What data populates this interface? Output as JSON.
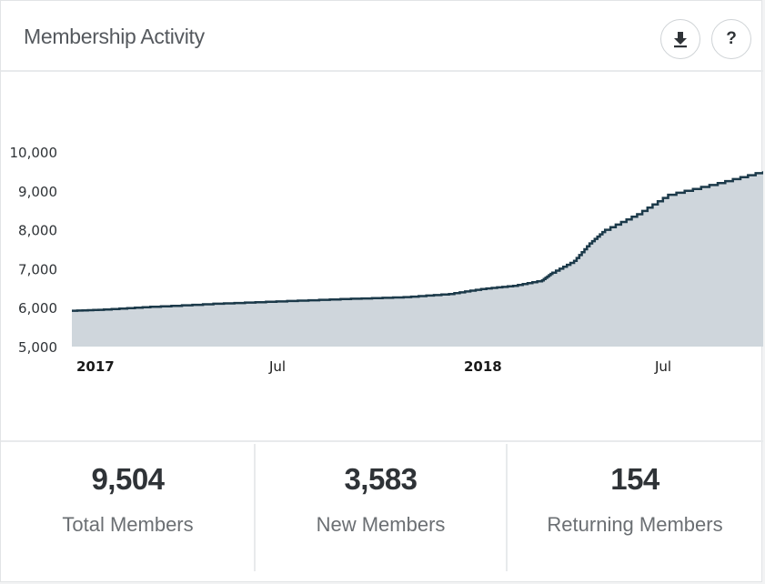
{
  "header": {
    "title": "Membership Activity",
    "download_icon": "download-icon",
    "help_icon": "help-icon",
    "help_label": "?"
  },
  "colors": {
    "line": "#1c3a4a",
    "area": "#cfd6dc",
    "text": "#2f3337"
  },
  "chart_data": {
    "type": "area",
    "title": "",
    "xlabel": "",
    "ylabel": "",
    "ylim": [
      5000,
      10000
    ],
    "xlim": [
      "2016-12-15",
      "2018-10-15"
    ],
    "yticks": [
      "5,000",
      "6,000",
      "7,000",
      "8,000",
      "9,000",
      "10,000"
    ],
    "yticks_values": [
      5000,
      6000,
      7000,
      8000,
      9000,
      10000
    ],
    "xticks": [
      {
        "label": "2017",
        "date": "2017-01-01",
        "bold": true
      },
      {
        "label": "Jul",
        "date": "2017-07-01",
        "bold": false
      },
      {
        "label": "2018",
        "date": "2018-01-01",
        "bold": true
      },
      {
        "label": "Jul",
        "date": "2018-07-01",
        "bold": false
      }
    ],
    "grid": false,
    "legend": "none",
    "series": [
      {
        "x": [
          "2016-12-15",
          "2017-01-15",
          "2017-03-01",
          "2017-05-01",
          "2017-07-01",
          "2017-09-01",
          "2017-11-01",
          "2017-12-15",
          "2018-01-15",
          "2018-02-15",
          "2018-03-15",
          "2018-03-25",
          "2018-04-15",
          "2018-04-30",
          "2018-05-15",
          "2018-06-15",
          "2018-07-15",
          "2018-09-01",
          "2018-10-15"
        ],
        "values": [
          5920,
          5950,
          6020,
          6100,
          6160,
          6220,
          6270,
          6350,
          6480,
          6560,
          6700,
          6900,
          7200,
          7650,
          8000,
          8400,
          8900,
          9200,
          9504
        ]
      }
    ]
  },
  "stats": [
    {
      "value": "9,504",
      "label": "Total Members"
    },
    {
      "value": "3,583",
      "label": "New Members"
    },
    {
      "value": "154",
      "label": "Returning Members"
    }
  ]
}
